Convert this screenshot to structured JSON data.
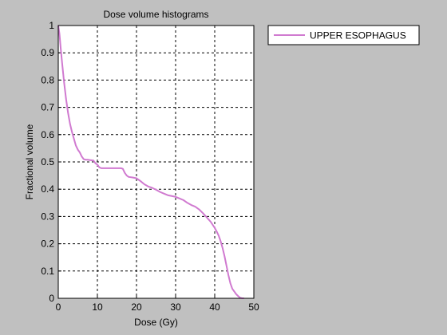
{
  "figure": {
    "background": "#c0c0c0"
  },
  "chart_data": {
    "type": "line",
    "title": "Dose volume histograms",
    "xlabel": "Dose (Gy)",
    "ylabel": "Fractional volume",
    "xlim": [
      0,
      50
    ],
    "ylim": [
      0,
      1
    ],
    "xticks": [
      0,
      10,
      20,
      30,
      40,
      50
    ],
    "yticks": [
      0,
      0.1,
      0.2,
      0.3,
      0.4,
      0.5,
      0.6,
      0.7,
      0.8,
      0.9,
      1
    ],
    "grid": true,
    "grid_style": "dashed",
    "legend_position": "outside-top-right",
    "series": [
      {
        "name": "UPPER ESOPHAGUS",
        "color": "#d07ad0",
        "x": [
          0,
          0.3,
          0.6,
          1,
          1.5,
          2,
          2.5,
          3,
          3.5,
          4,
          4.5,
          5,
          5.5,
          6,
          6.5,
          7,
          7.5,
          8,
          9,
          9.5,
          10,
          10.5,
          11,
          12,
          13,
          14,
          15,
          16,
          16.5,
          17,
          17.5,
          18,
          19,
          20,
          21,
          22,
          23,
          24,
          25,
          26,
          27,
          28,
          29,
          30,
          31,
          32,
          33,
          34,
          35,
          36,
          37,
          38,
          39,
          40,
          40.5,
          41,
          41.5,
          42,
          42.5,
          43,
          43.5,
          44,
          44.5,
          45,
          45.5,
          46,
          46.5,
          47,
          47.5
        ],
        "values": [
          1,
          0.97,
          0.92,
          0.86,
          0.79,
          0.73,
          0.68,
          0.64,
          0.61,
          0.585,
          0.56,
          0.545,
          0.535,
          0.52,
          0.51,
          0.508,
          0.508,
          0.507,
          0.505,
          0.495,
          0.49,
          0.48,
          0.477,
          0.477,
          0.477,
          0.477,
          0.477,
          0.477,
          0.475,
          0.46,
          0.45,
          0.445,
          0.443,
          0.44,
          0.43,
          0.418,
          0.41,
          0.405,
          0.398,
          0.39,
          0.384,
          0.378,
          0.375,
          0.372,
          0.366,
          0.36,
          0.35,
          0.342,
          0.336,
          0.326,
          0.312,
          0.296,
          0.28,
          0.258,
          0.245,
          0.23,
          0.21,
          0.185,
          0.155,
          0.12,
          0.085,
          0.055,
          0.035,
          0.025,
          0.015,
          0.008,
          0.002,
          0,
          0
        ]
      }
    ]
  }
}
